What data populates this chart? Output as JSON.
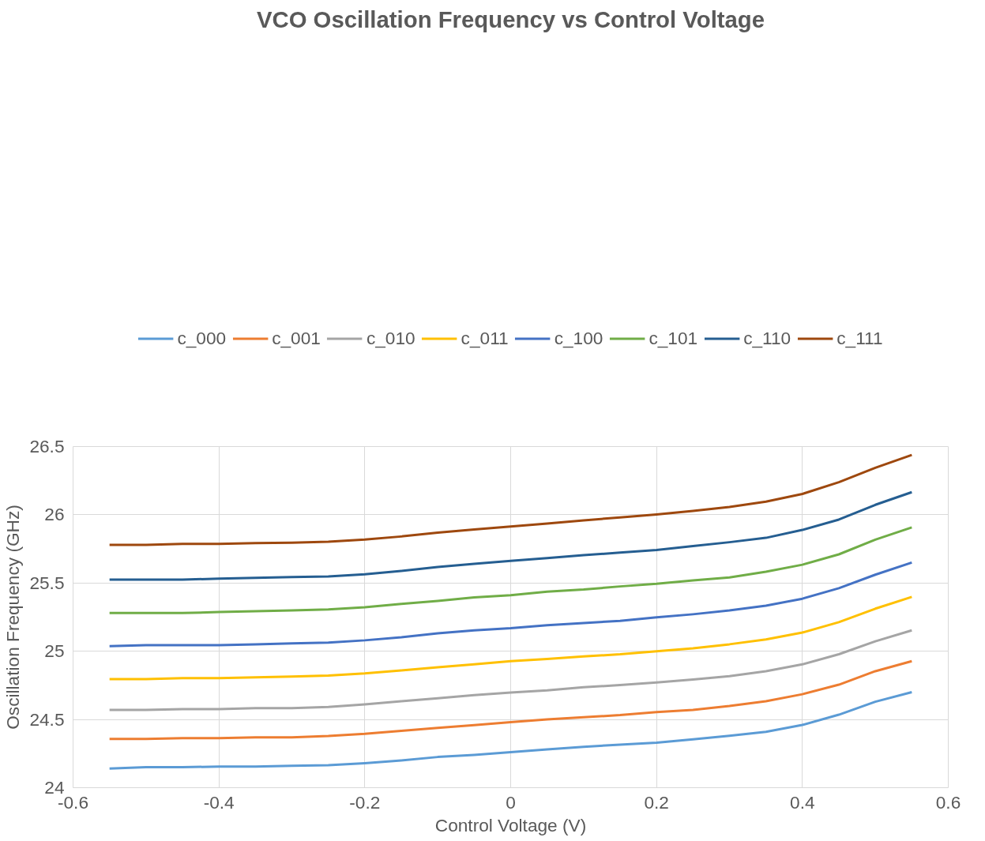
{
  "chart_data": {
    "type": "line",
    "title": "VCO Oscillation Frequency vs Control Voltage",
    "xlabel": "Control Voltage (V)",
    "ylabel": "Oscillation Frequency (GHz)",
    "x": [
      -0.55,
      -0.5,
      -0.45,
      -0.4,
      -0.35,
      -0.3,
      -0.25,
      -0.2,
      -0.15,
      -0.1,
      -0.05,
      0,
      0.05,
      0.1,
      0.15,
      0.2,
      0.25,
      0.3,
      0.35,
      0.4,
      0.45,
      0.5,
      0.55
    ],
    "xlim": [
      -0.6,
      0.6
    ],
    "xticks": [
      -0.6,
      -0.4,
      -0.2,
      0,
      0.2,
      0.4,
      0.6
    ],
    "ylim": [
      24,
      26.5
    ],
    "yticks": [
      24,
      24.5,
      25,
      25.5,
      26,
      26.5
    ],
    "grid": true,
    "legend": "top",
    "marker": "none",
    "line_style": "solid",
    "series": [
      {
        "name": "c_000",
        "color": "#5b9bd5",
        "values": [
          24.14,
          24.15,
          24.15,
          24.155,
          24.155,
          24.16,
          24.165,
          24.18,
          24.2,
          24.225,
          24.24,
          24.26,
          24.28,
          24.3,
          24.315,
          24.33,
          24.355,
          24.38,
          24.41,
          24.46,
          24.535,
          24.63,
          24.7
        ]
      },
      {
        "name": "c_001",
        "color": "#ed7d31",
        "values": [
          24.357,
          24.357,
          24.363,
          24.363,
          24.369,
          24.369,
          24.379,
          24.395,
          24.417,
          24.439,
          24.459,
          24.481,
          24.5,
          24.516,
          24.532,
          24.554,
          24.57,
          24.599,
          24.634,
          24.685,
          24.755,
          24.854,
          24.927
        ]
      },
      {
        "name": "c_010",
        "color": "#a5a5a5",
        "values": [
          24.57,
          24.57,
          24.576,
          24.576,
          24.583,
          24.583,
          24.592,
          24.611,
          24.634,
          24.656,
          24.678,
          24.697,
          24.713,
          24.736,
          24.752,
          24.771,
          24.793,
          24.818,
          24.854,
          24.904,
          24.978,
          25.073,
          25.153
        ]
      },
      {
        "name": "c_011",
        "color": "#ffc000",
        "values": [
          24.796,
          24.796,
          24.803,
          24.803,
          24.809,
          24.815,
          24.822,
          24.838,
          24.86,
          24.882,
          24.904,
          24.927,
          24.943,
          24.962,
          24.978,
          25.0,
          25.022,
          25.051,
          25.086,
          25.137,
          25.213,
          25.312,
          25.398
        ]
      },
      {
        "name": "c_100",
        "color": "#4472c4",
        "values": [
          25.038,
          25.045,
          25.045,
          25.045,
          25.051,
          25.057,
          25.064,
          25.08,
          25.102,
          25.131,
          25.153,
          25.169,
          25.191,
          25.207,
          25.223,
          25.248,
          25.271,
          25.299,
          25.334,
          25.385,
          25.462,
          25.561,
          25.65
        ]
      },
      {
        "name": "c_101",
        "color": "#70ad47",
        "values": [
          25.28,
          25.28,
          25.28,
          25.287,
          25.293,
          25.299,
          25.306,
          25.322,
          25.347,
          25.369,
          25.395,
          25.411,
          25.436,
          25.452,
          25.475,
          25.494,
          25.519,
          25.541,
          25.583,
          25.634,
          25.71,
          25.818,
          25.908
        ]
      },
      {
        "name": "c_110",
        "color": "#255e91",
        "values": [
          25.525,
          25.525,
          25.525,
          25.532,
          25.538,
          25.544,
          25.548,
          25.564,
          25.589,
          25.618,
          25.64,
          25.662,
          25.682,
          25.704,
          25.723,
          25.742,
          25.771,
          25.799,
          25.831,
          25.889,
          25.965,
          26.073,
          26.166
        ]
      },
      {
        "name": "c_111",
        "color": "#9e480e",
        "values": [
          25.78,
          25.78,
          25.787,
          25.787,
          25.793,
          25.796,
          25.803,
          25.818,
          25.841,
          25.869,
          25.892,
          25.914,
          25.936,
          25.959,
          25.981,
          26.003,
          26.029,
          26.057,
          26.096,
          26.153,
          26.239,
          26.344,
          26.439
        ]
      }
    ]
  }
}
